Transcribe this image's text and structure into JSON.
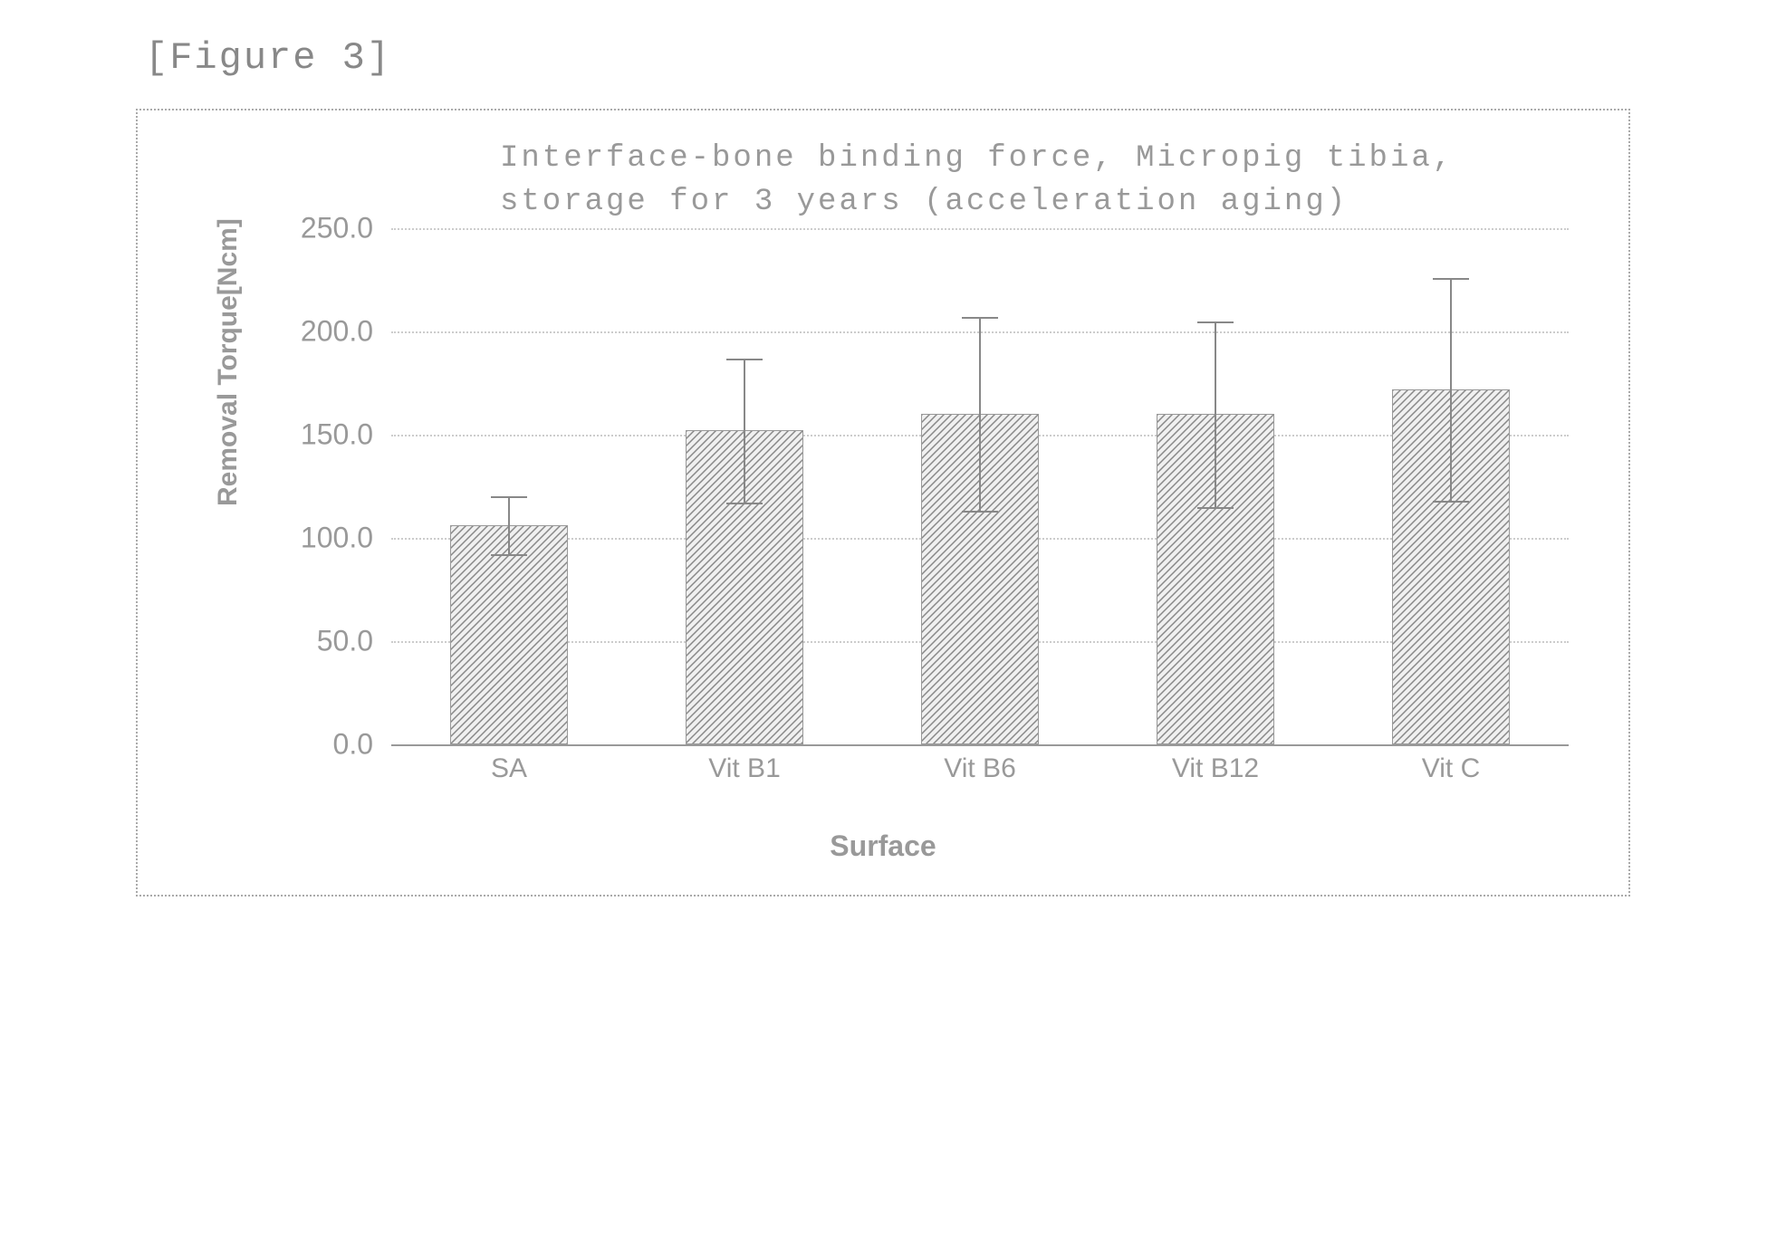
{
  "figure_label": "[Figure 3]",
  "chart": {
    "type": "bar",
    "title_line1": "Interface-bone binding force, Micropig tibia,",
    "title_line2": "storage for 3 years (acceleration aging)",
    "title_fontsize": 34,
    "ylabel": "Removal Torque[Ncm]",
    "xlabel": "Surface",
    "label_fontsize": 30,
    "ylim": [
      0,
      250
    ],
    "ytick_step": 50,
    "yticks": [
      "0.0",
      "50.0",
      "100.0",
      "150.0",
      "200.0",
      "250.0"
    ],
    "categories": [
      "SA",
      "Vit B1",
      "Vit B6",
      "Vit B12",
      "Vit C"
    ],
    "values": [
      106,
      152,
      160,
      160,
      172
    ],
    "error_upper": [
      120,
      187,
      207,
      205,
      226
    ],
    "error_lower": [
      92,
      117,
      113,
      115,
      118
    ],
    "bar_color": "#d0d0d0",
    "bar_pattern": "diagonal-hatch",
    "bar_width": 0.5,
    "background_color": "#ffffff",
    "grid_color": "#cccccc",
    "grid_style": "dotted",
    "border_color": "#aaaaaa",
    "text_color": "#999999",
    "error_cap_width": 40
  }
}
